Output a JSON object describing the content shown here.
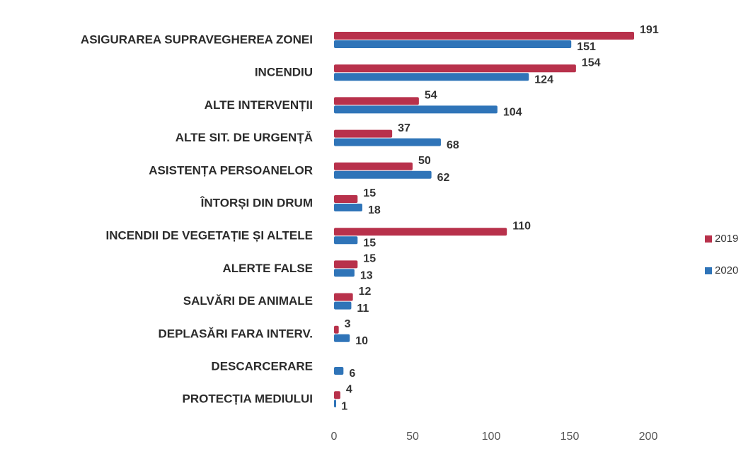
{
  "chart_data": {
    "type": "bar",
    "orientation": "horizontal",
    "categories": [
      "ASIGURAREA SUPRAVEGHEREA ZONEI",
      "INCENDIU",
      "ALTE INTERVENȚII",
      "ALTE SIT. DE URGENȚĂ",
      "ASISTENȚA PERSOANELOR",
      "ÎNTORȘI DIN DRUM",
      "INCENDII DE VEGETAȚIE ȘI ALTELE",
      "ALERTE FALSE",
      "SALVĂRI DE ANIMALE",
      "DEPLASĂRI FARA INTERV.",
      "DESCARCERARE",
      "PROTECȚIA MEDIULUI"
    ],
    "series": [
      {
        "name": "2019",
        "color": "#b8314b",
        "values": [
          191,
          154,
          54,
          37,
          50,
          15,
          110,
          15,
          12,
          3,
          null,
          4
        ]
      },
      {
        "name": "2020",
        "color": "#2f74b8",
        "values": [
          151,
          124,
          104,
          68,
          62,
          18,
          15,
          13,
          11,
          10,
          6,
          1
        ]
      }
    ],
    "xlim": [
      0,
      200
    ],
    "xticks": [
      0,
      50,
      100,
      150,
      200
    ],
    "legend": "right"
  }
}
